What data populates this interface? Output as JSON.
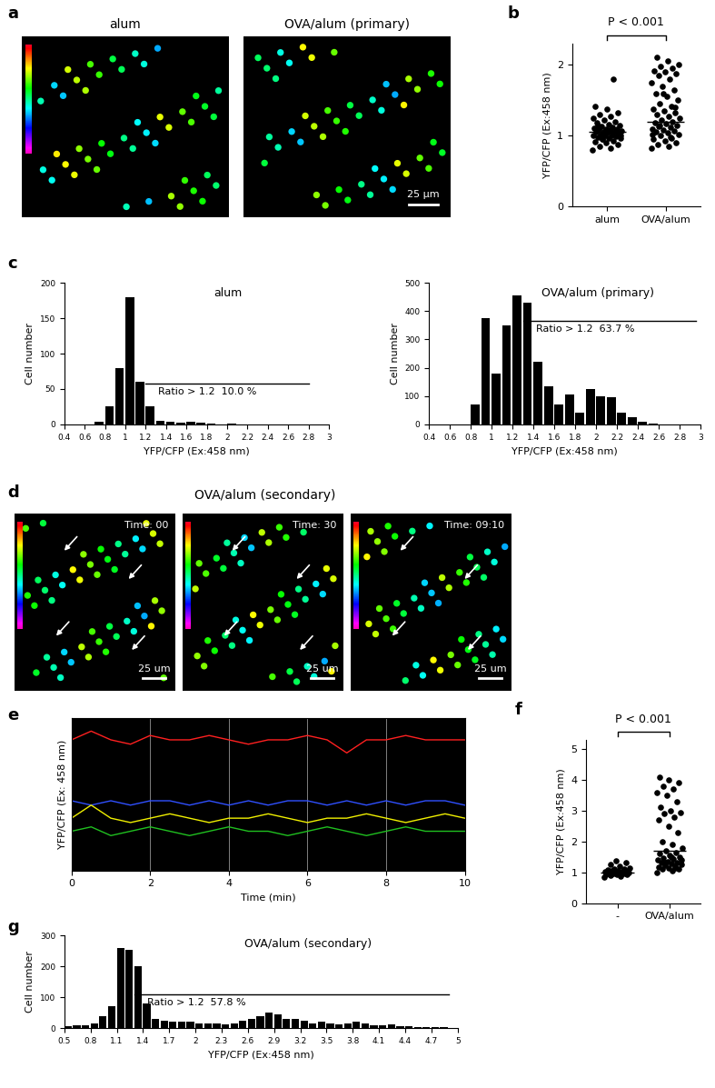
{
  "images": [
    {
      "panel": "a",
      "frames": [
        {
          "title": "alum"
        },
        {
          "title": "OVA/alum (primary)",
          "scale_bar": "25 µm"
        }
      ]
    },
    {
      "panel": "d",
      "title": "OVA/alum (secondary)",
      "frames": [
        {
          "time": "Time: 00",
          "scale_bar": "25 um"
        },
        {
          "time": "Time: 30",
          "scale_bar": "25 um"
        },
        {
          "time": "Time: 09:10",
          "scale_bar": "25 um"
        }
      ]
    }
  ],
  "chart_data": [
    {
      "panel": "b",
      "type": "strip",
      "categories": [
        "alum",
        "OVA/alum"
      ],
      "values": [
        [
          0.8,
          0.82,
          0.85,
          0.88,
          0.9,
          0.92,
          0.93,
          0.95,
          0.96,
          0.97,
          0.98,
          0.99,
          1.0,
          1.0,
          1.01,
          1.02,
          1.03,
          1.04,
          1.05,
          1.05,
          1.06,
          1.07,
          1.08,
          1.09,
          1.1,
          1.1,
          1.11,
          1.12,
          1.13,
          1.15,
          1.16,
          1.18,
          1.2,
          1.22,
          1.25,
          1.28,
          1.3,
          1.33,
          1.38,
          1.42,
          1.8,
          0.95,
          1.0,
          1.07,
          1.14
        ],
        [
          0.82,
          0.85,
          0.88,
          0.9,
          0.93,
          0.95,
          0.97,
          1.0,
          1.02,
          1.04,
          1.05,
          1.07,
          1.08,
          1.1,
          1.12,
          1.13,
          1.15,
          1.17,
          1.18,
          1.2,
          1.22,
          1.25,
          1.27,
          1.3,
          1.32,
          1.35,
          1.38,
          1.42,
          1.45,
          1.5,
          1.55,
          1.6,
          1.65,
          1.7,
          1.75,
          1.8,
          1.85,
          1.88,
          1.9,
          1.92,
          1.95,
          1.98,
          2.0,
          2.05,
          2.1,
          1.4,
          1.6,
          1.02,
          0.98,
          1.15
        ]
      ],
      "means": [
        1.05,
        1.2
      ],
      "annotation": "P < 0.001",
      "y_label": "YFP/CFP (Ex:458 nm)",
      "ylim": [
        0,
        2.3
      ],
      "yticks": [
        0,
        1,
        2
      ],
      "color": "black",
      "marker": "o"
    },
    {
      "panel": "c",
      "type": "histogram",
      "title": "alum",
      "bins": [
        0.4,
        0.5,
        0.6,
        0.7,
        0.8,
        0.9,
        1.0,
        1.1,
        1.2,
        1.3,
        1.4,
        1.5,
        1.6,
        1.7,
        1.8,
        1.9,
        2.0,
        2.1,
        2.2,
        2.3,
        2.4,
        2.5,
        2.6,
        2.7,
        2.8,
        2.9,
        3.0
      ],
      "counts": [
        0,
        0,
        0,
        3,
        25,
        80,
        180,
        60,
        25,
        5,
        3,
        2,
        4,
        2,
        1,
        0,
        1,
        0,
        0,
        0,
        0,
        0,
        0,
        0,
        0,
        0
      ],
      "x_label": "YFP/CFP (Ex:458 nm)",
      "y_label": "Cell number",
      "xlim": [
        0.4,
        3
      ],
      "ylim": [
        0,
        200
      ],
      "xticks": [
        0.4,
        0.6,
        0.8,
        1,
        1.2,
        1.4,
        1.6,
        1.8,
        2,
        2.2,
        2.4,
        2.6,
        2.8,
        3
      ],
      "yticks": [
        0,
        50,
        100,
        150,
        200
      ],
      "color": "black",
      "annotation": "Ratio > 1.2  10.0 %",
      "bracket": {
        "x": [
          1.2,
          2.8
        ],
        "y": 58
      }
    },
    {
      "type": "histogram",
      "title": "OVA/alum (primary)",
      "bins": [
        0.4,
        0.5,
        0.6,
        0.7,
        0.8,
        0.9,
        1.0,
        1.1,
        1.2,
        1.3,
        1.4,
        1.5,
        1.6,
        1.7,
        1.8,
        1.9,
        2.0,
        2.1,
        2.2,
        2.3,
        2.4,
        2.5,
        2.6,
        2.7,
        2.8,
        2.9,
        3.0
      ],
      "counts": [
        0,
        0,
        0,
        0,
        70,
        375,
        180,
        350,
        455,
        430,
        220,
        135,
        70,
        105,
        40,
        125,
        100,
        95,
        40,
        25,
        10,
        3,
        0,
        0,
        0,
        0
      ],
      "x_label": "YFP/CFP (Ex:458 nm)",
      "y_label": "Cell number",
      "xlim": [
        0.4,
        3
      ],
      "ylim": [
        0,
        500
      ],
      "xticks": [
        0.4,
        0.6,
        0.8,
        1,
        1.2,
        1.4,
        1.6,
        1.8,
        2,
        2.2,
        2.4,
        2.6,
        2.8,
        3
      ],
      "yticks": [
        0,
        100,
        200,
        300,
        400,
        500
      ],
      "color": "black",
      "annotation": "Ratio > 1.2  63.7 %",
      "bracket": {
        "x": [
          1.3,
          2.95
        ],
        "y": 365
      }
    },
    {
      "panel": "e",
      "type": "line",
      "x": [
        0,
        0.5,
        1,
        1.5,
        2,
        2.5,
        3,
        3.5,
        4,
        4.5,
        5,
        5.5,
        6,
        6.5,
        7,
        7.5,
        8,
        8.5,
        9,
        9.5,
        10
      ],
      "series": [
        {
          "color": "#ff2020",
          "values": [
            3.5,
            3.7,
            3.5,
            3.4,
            3.6,
            3.5,
            3.5,
            3.6,
            3.5,
            3.4,
            3.5,
            3.5,
            3.6,
            3.5,
            3.2,
            3.5,
            3.5,
            3.6,
            3.5,
            3.5,
            3.5
          ]
        },
        {
          "color": "#3050ff",
          "values": [
            2.1,
            2.0,
            2.1,
            2.0,
            2.1,
            2.1,
            2.0,
            2.1,
            2.0,
            2.1,
            2.0,
            2.1,
            2.1,
            2.0,
            2.1,
            2.0,
            2.1,
            2.0,
            2.1,
            2.1,
            2.0
          ]
        },
        {
          "color": "#f0f000",
          "values": [
            1.7,
            2.0,
            1.7,
            1.6,
            1.7,
            1.8,
            1.7,
            1.6,
            1.7,
            1.7,
            1.8,
            1.7,
            1.6,
            1.7,
            1.7,
            1.8,
            1.7,
            1.6,
            1.7,
            1.8,
            1.7
          ]
        },
        {
          "color": "#20c020",
          "values": [
            1.4,
            1.5,
            1.3,
            1.4,
            1.5,
            1.4,
            1.3,
            1.4,
            1.5,
            1.4,
            1.4,
            1.3,
            1.4,
            1.5,
            1.4,
            1.3,
            1.4,
            1.5,
            1.4,
            1.4,
            1.4
          ]
        }
      ],
      "x_label": "Time (min)",
      "y_label": "YFP/CFP (Ex: 458 nm)",
      "xlim": [
        0,
        10
      ],
      "ylim": [
        0.5,
        4
      ],
      "xticks": [
        0,
        2,
        4,
        6,
        8,
        10
      ],
      "yticks": [],
      "tick_labels": "x",
      "grid": true
    },
    {
      "panel": "f",
      "type": "strip",
      "categories": [
        "-",
        "OVA/alum"
      ],
      "values": [
        [
          0.85,
          0.88,
          0.9,
          0.92,
          0.94,
          0.95,
          0.96,
          0.97,
          0.98,
          0.99,
          1.0,
          1.0,
          1.01,
          1.02,
          1.03,
          1.04,
          1.05,
          1.06,
          1.08,
          1.1,
          1.12,
          1.15,
          1.2,
          1.25,
          1.3,
          1.38,
          0.93,
          1.0
        ],
        [
          1.0,
          1.05,
          1.1,
          1.12,
          1.15,
          1.18,
          1.2,
          1.22,
          1.25,
          1.28,
          1.3,
          1.32,
          1.35,
          1.4,
          1.42,
          1.45,
          1.5,
          1.55,
          1.6,
          1.65,
          1.7,
          1.8,
          1.9,
          2.0,
          2.3,
          2.5,
          2.7,
          2.8,
          2.9,
          2.95,
          3.0,
          3.1,
          3.3,
          3.5,
          3.6,
          3.7,
          3.8,
          3.9,
          4.0,
          4.1,
          1.15,
          1.3,
          1.4,
          1.5
        ]
      ],
      "means": [
        1.0,
        1.7
      ],
      "annotation": "P < 0.001",
      "y_label": "YFP/CFP (Ex:458 nm)",
      "ylim": [
        0,
        5.3
      ],
      "yticks": [
        0,
        1,
        2,
        3,
        4,
        5
      ],
      "color": "black",
      "marker": "o"
    },
    {
      "panel": "g",
      "type": "histogram",
      "title": "OVA/alum (secondary)",
      "bins": [
        0.5,
        0.6,
        0.7,
        0.8,
        0.9,
        1.0,
        1.1,
        1.2,
        1.3,
        1.4,
        1.5,
        1.6,
        1.7,
        1.8,
        1.9,
        2.0,
        2.1,
        2.2,
        2.3,
        2.4,
        2.5,
        2.6,
        2.7,
        2.8,
        2.9,
        3.0,
        3.1,
        3.2,
        3.3,
        3.4,
        3.5,
        3.6,
        3.7,
        3.8,
        3.9,
        4.0,
        4.1,
        4.2,
        4.3,
        4.4,
        4.5,
        4.6,
        4.7,
        4.8,
        4.9,
        5.0
      ],
      "counts": [
        5,
        8,
        10,
        15,
        40,
        70,
        260,
        255,
        200,
        80,
        30,
        25,
        20,
        20,
        20,
        15,
        15,
        15,
        12,
        15,
        25,
        30,
        40,
        50,
        45,
        30,
        30,
        25,
        15,
        20,
        15,
        12,
        15,
        20,
        15,
        10,
        10,
        12,
        5,
        5,
        3,
        3,
        2,
        2,
        0
      ],
      "x_label": "YFP/CFP (Ex:458 nm)",
      "y_label": "Cell number",
      "xlim": [
        0.5,
        5
      ],
      "ylim": [
        0,
        300
      ],
      "xticks": [
        0.5,
        0.8,
        1.1,
        1.4,
        1.7,
        2,
        2.3,
        2.6,
        2.9,
        3.2,
        3.5,
        3.8,
        4.1,
        4.4,
        4.7,
        5
      ],
      "yticks": [
        0,
        100,
        200,
        300
      ],
      "color": "black",
      "annotation": "Ratio > 1.2  57.8 %",
      "bracket": {
        "x": [
          1.3,
          4.9
        ],
        "y": 110
      }
    }
  ]
}
